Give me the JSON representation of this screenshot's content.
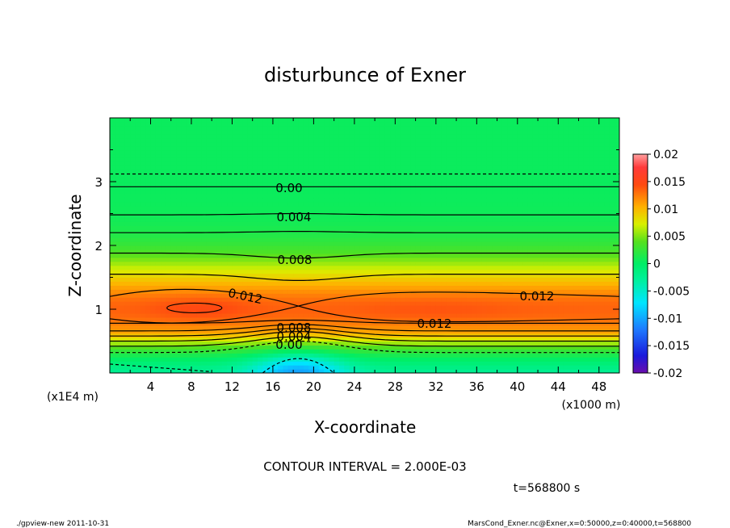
{
  "chart_data": {
    "type": "heatmap",
    "title": "disturbunce of Exner",
    "xlabel": "X-coordinate",
    "ylabel": "Z-coordinate",
    "x_unit": "(x1000 m)",
    "y_unit": "(x1E4 m)",
    "xlim": [
      0,
      50
    ],
    "ylim": [
      0,
      4
    ],
    "x_ticks": [
      "4",
      "8",
      "12",
      "16",
      "20",
      "24",
      "28",
      "32",
      "36",
      "40",
      "44",
      "48"
    ],
    "y_ticks": [
      "1",
      "2",
      "3"
    ],
    "colorbar": {
      "range": [
        -0.02,
        0.02
      ],
      "tick_labels": [
        "0.02",
        "0.015",
        "0.01",
        "0.005",
        "0",
        "-0.005",
        "-0.01",
        "-0.015",
        "-0.02"
      ]
    },
    "contour_interval": "CONTOUR INTERVAL = 2.000E-03",
    "contour_labels": [
      "0.00",
      "0.004",
      "0.008",
      "0.012",
      "0.012",
      "0.012",
      "0.008",
      "0.004",
      "0.00"
    ],
    "time_label": "t=568800 s",
    "field": {
      "description_points": [
        {
          "x": 9,
          "z": 1.0,
          "value": 0.0135
        },
        {
          "x": 18.5,
          "z": 1.05,
          "value": 0.012
        },
        {
          "x": 30,
          "z": 1.0,
          "value": 0.0125
        },
        {
          "x": 18,
          "z": 0.1,
          "value": -0.006
        }
      ]
    }
  },
  "footer": {
    "left": "./gpview-new  2011-10-31",
    "right": "MarsCond_Exner.nc@Exner,x=0:50000,z=0:40000,t=568800"
  }
}
